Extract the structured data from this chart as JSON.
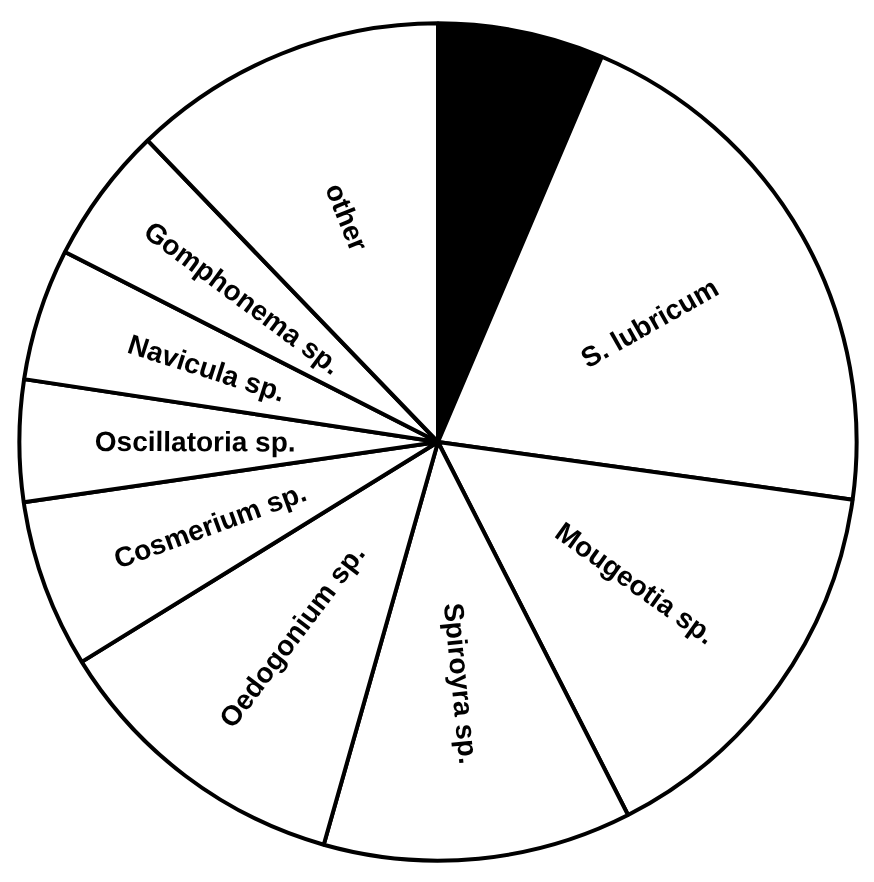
{
  "chart_data": {
    "type": "pie",
    "categories": [
      null,
      "S. lubricum",
      "Mougeotia sp.",
      "Spiroyra sp.",
      "Oedogonium sp.",
      "Cosmerium sp.",
      "Oscillatoria sp.",
      "Navicula sp.",
      "Gomphonema sp.",
      "other"
    ],
    "values": [
      6.4,
      20.8,
      15.3,
      11.9,
      11.8,
      6.5,
      4.7,
      5.1,
      5.3,
      12.2
    ],
    "colors": [
      "#000000",
      "#ffffff",
      "#ffffff",
      "#ffffff",
      "#ffffff",
      "#ffffff",
      "#ffffff",
      "#ffffff",
      "#ffffff",
      "#ffffff"
    ]
  }
}
